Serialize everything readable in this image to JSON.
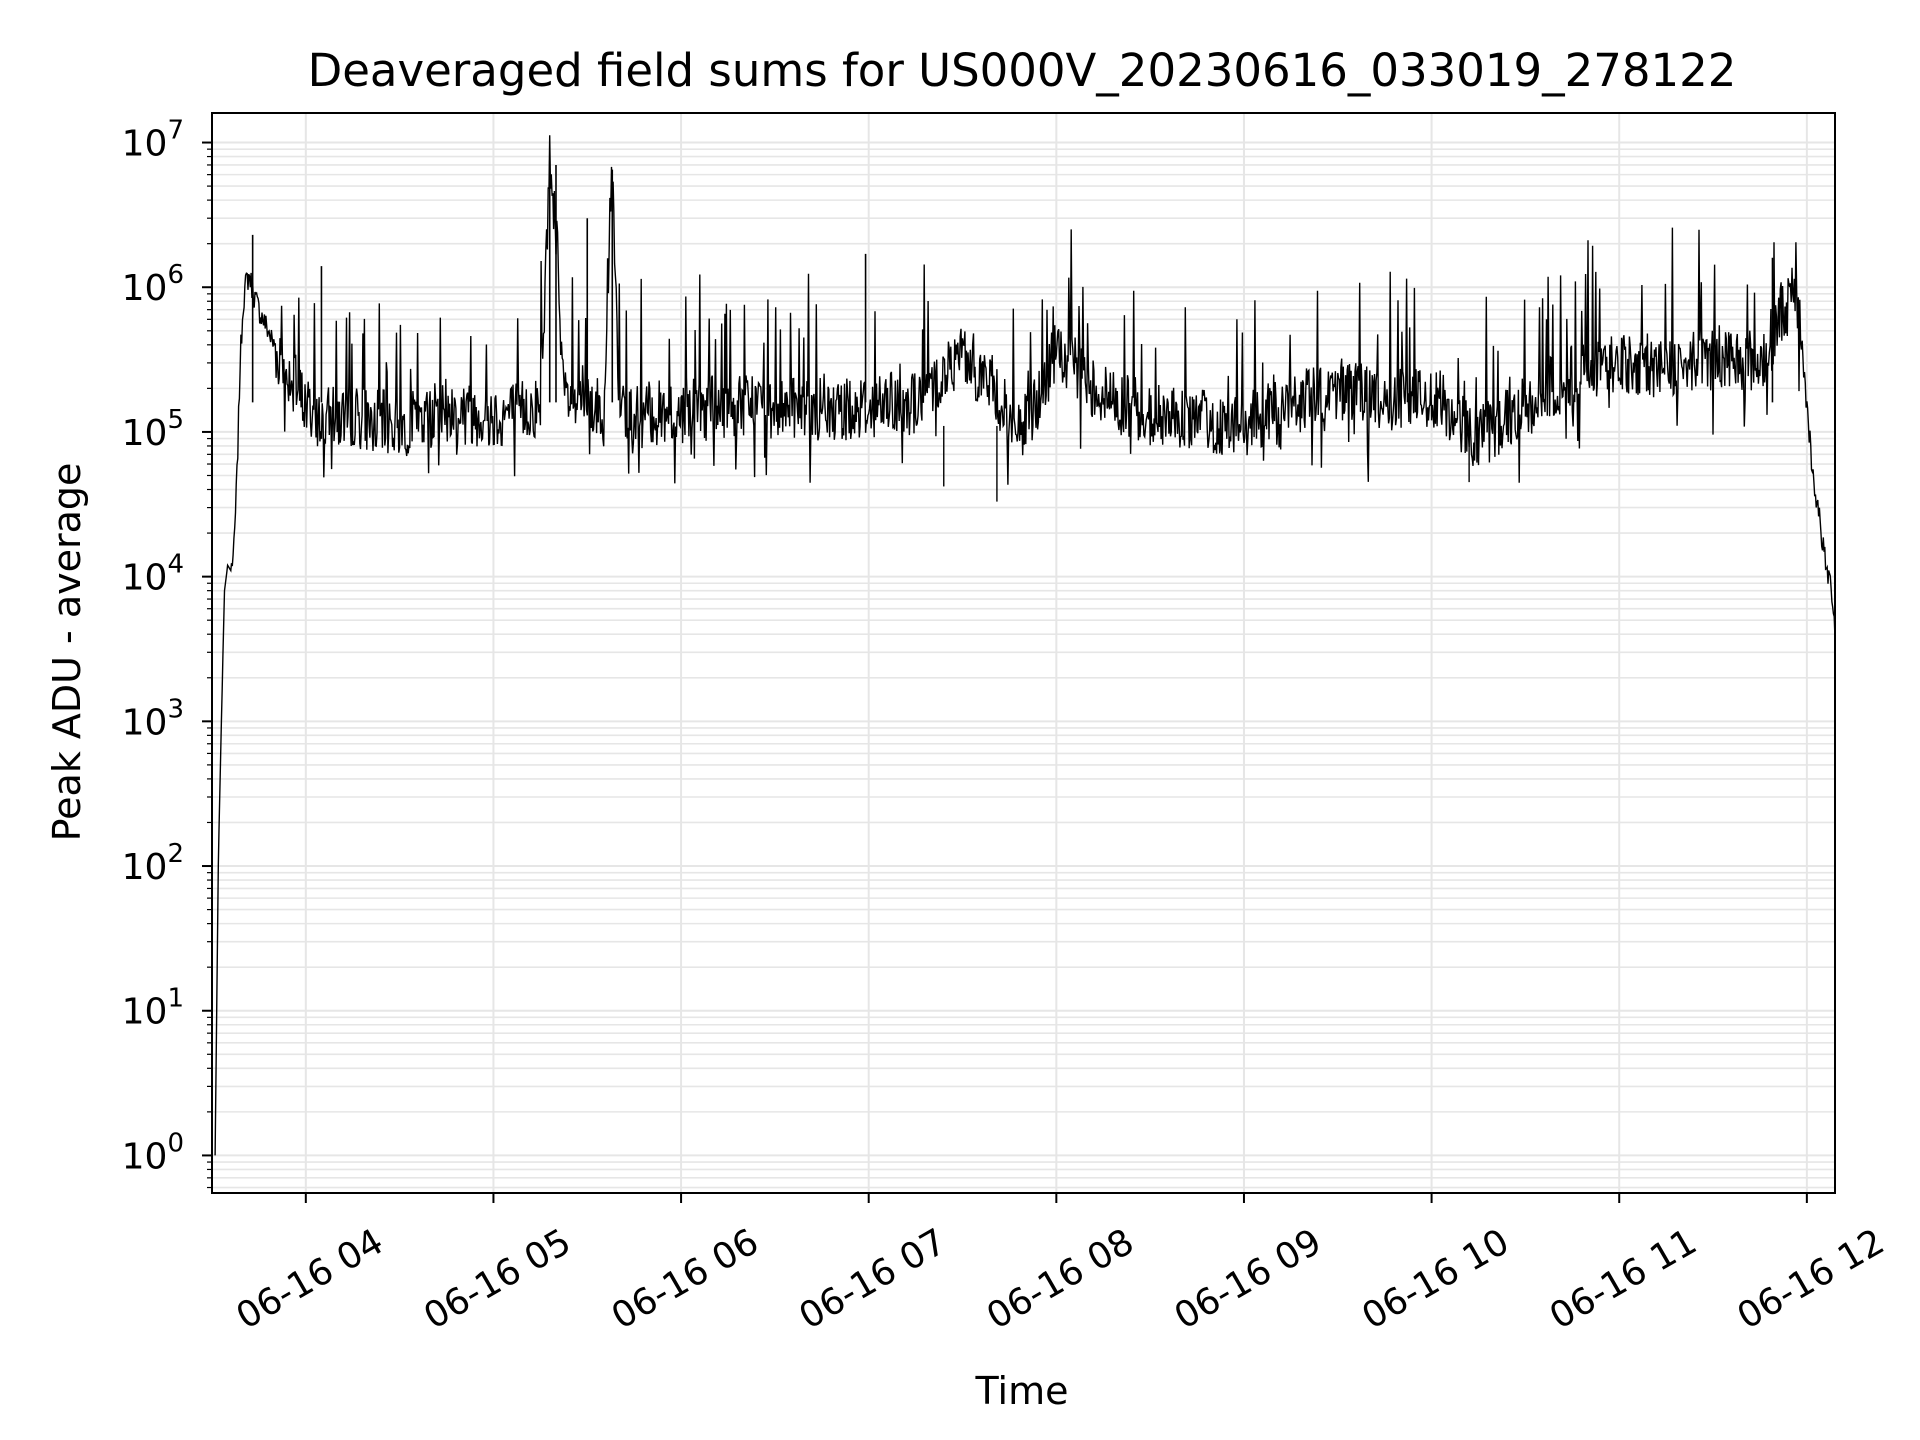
{
  "chart_data": {
    "type": "line",
    "title": "Deaveraged field sums for US000V_20230616_033019_278122",
    "xlabel": "Time",
    "ylabel": "Peak ADU - average",
    "yscale": "log",
    "ylim": [
      0.55,
      16000000
    ],
    "xlim": [
      "2023-06-16 03:30",
      "2023-06-16 12:09"
    ],
    "x_ticks": [
      "06-16 04",
      "06-16 05",
      "06-16 06",
      "06-16 07",
      "06-16 08",
      "06-16 09",
      "06-16 10",
      "06-16 11",
      "06-16 12"
    ],
    "y_ticks": [
      {
        "base": "10",
        "exp": "0"
      },
      {
        "base": "10",
        "exp": "1"
      },
      {
        "base": "10",
        "exp": "2"
      },
      {
        "base": "10",
        "exp": "3"
      },
      {
        "base": "10",
        "exp": "4"
      },
      {
        "base": "10",
        "exp": "5"
      },
      {
        "base": "10",
        "exp": "6"
      },
      {
        "base": "10",
        "exp": "7"
      }
    ],
    "grid": true,
    "line_color": "#000000",
    "grid_color": "#e6e6e6",
    "series": [
      {
        "x": [
          "2023-06-16 03:31",
          "2023-06-16 03:32",
          "2023-06-16 03:33",
          "2023-06-16 03:34",
          "2023-06-16 03:35",
          "2023-06-16 03:36",
          "2023-06-16 03:37",
          "2023-06-16 03:38",
          "2023-06-16 03:39",
          "2023-06-16 03:40",
          "2023-06-16 03:41",
          "2023-06-16 03:42",
          "2023-06-16 03:43",
          "2023-06-16 03:45",
          "2023-06-16 03:48",
          "2023-06-16 03:52",
          "2023-06-16 03:55",
          "2023-06-16 04:00",
          "2023-06-16 04:05",
          "2023-06-16 04:15",
          "2023-06-16 04:30",
          "2023-06-16 04:45",
          "2023-06-16 05:00",
          "2023-06-16 05:15",
          "2023-06-16 05:18",
          "2023-06-16 05:20",
          "2023-06-16 05:22",
          "2023-06-16 05:25",
          "2023-06-16 05:30",
          "2023-06-16 05:35",
          "2023-06-16 05:38",
          "2023-06-16 05:40",
          "2023-06-16 05:45",
          "2023-06-16 06:00",
          "2023-06-16 06:15",
          "2023-06-16 06:30",
          "2023-06-16 06:45",
          "2023-06-16 06:59",
          "2023-06-16 07:15",
          "2023-06-16 07:30",
          "2023-06-16 07:40",
          "2023-06-16 07:45",
          "2023-06-16 07:50",
          "2023-06-16 08:00",
          "2023-06-16 08:15",
          "2023-06-16 08:30",
          "2023-06-16 08:45",
          "2023-06-16 09:00",
          "2023-06-16 09:15",
          "2023-06-16 09:30",
          "2023-06-16 09:45",
          "2023-06-16 10:00",
          "2023-06-16 10:15",
          "2023-06-16 10:30",
          "2023-06-16 10:45",
          "2023-06-16 11:00",
          "2023-06-16 11:15",
          "2023-06-16 11:30",
          "2023-06-16 11:45",
          "2023-06-16 11:48",
          "2023-06-16 11:52",
          "2023-06-16 11:55",
          "2023-06-16 11:58",
          "2023-06-16 12:00",
          "2023-06-16 12:02",
          "2023-06-16 12:04",
          "2023-06-16 12:06",
          "2023-06-16 12:08",
          "2023-06-16 12:09"
        ],
        "values": [
          1,
          100,
          1000,
          8000,
          12000,
          11000,
          15000,
          50000,
          300000,
          800000,
          1100000,
          1200000,
          950000,
          700000,
          500000,
          300000,
          250000,
          150000,
          120000,
          130000,
          110000,
          140000,
          130000,
          150000,
          7500000,
          3000000,
          200000,
          150000,
          160000,
          140000,
          6500000,
          160000,
          130000,
          140000,
          150000,
          160000,
          140000,
          150000,
          160000,
          350000,
          200000,
          120000,
          110000,
          350000,
          180000,
          130000,
          120000,
          110000,
          150000,
          200000,
          160000,
          180000,
          90000,
          150000,
          250000,
          300000,
          280000,
          350000,
          300000,
          400000,
          700000,
          800000,
          500000,
          150000,
          50000,
          25000,
          12000,
          8000,
          4500
        ]
      }
    ],
    "spikes": [
      {
        "x": "2023-06-16 03:43",
        "value": 2300000
      },
      {
        "x": "2023-06-16 04:05",
        "value": 1400000
      },
      {
        "x": "2023-06-16 05:18",
        "value": 7500000
      },
      {
        "x": "2023-06-16 05:20",
        "value": 7000000
      },
      {
        "x": "2023-06-16 05:30",
        "value": 3000000
      },
      {
        "x": "2023-06-16 05:38",
        "value": 6500000
      },
      {
        "x": "2023-06-16 06:59",
        "value": 1700000
      },
      {
        "x": "2023-06-16 11:49",
        "value": 1600000
      }
    ],
    "dips": [
      {
        "x": "2023-06-16 07:41",
        "value": 33000
      },
      {
        "x": "2023-06-16 07:24",
        "value": 42000
      },
      {
        "x": "2023-06-16 10:12",
        "value": 45000
      }
    ]
  }
}
